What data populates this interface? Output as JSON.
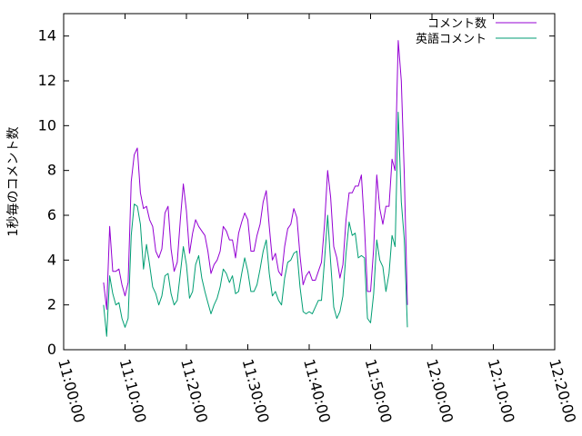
{
  "chart_data": {
    "type": "line",
    "title": "",
    "xlabel": "",
    "ylabel": "1秒毎のコメント数",
    "xlim": [
      "11:00:00",
      "12:20:00"
    ],
    "ylim": [
      0,
      15
    ],
    "x_ticks": [
      "11:00:00",
      "11:10:00",
      "11:20:00",
      "11:30:00",
      "11:40:00",
      "11:50:00",
      "12:00:00",
      "12:10:00",
      "12:20:00"
    ],
    "y_ticks": [
      "0",
      "2",
      "4",
      "6",
      "8",
      "10",
      "12",
      "14"
    ],
    "grid": false,
    "legend_position": "top-right",
    "series": [
      {
        "name": "コメント数",
        "color": "#9400d3",
        "points": [
          [
            "11:06:30",
            3.0
          ],
          [
            "11:07:00",
            1.8
          ],
          [
            "11:07:30",
            5.5
          ],
          [
            "11:08:00",
            3.5
          ],
          [
            "11:08:30",
            3.5
          ],
          [
            "11:09:00",
            3.6
          ],
          [
            "11:09:30",
            2.9
          ],
          [
            "11:10:00",
            2.4
          ],
          [
            "11:10:30",
            3.0
          ],
          [
            "11:11:00",
            7.5
          ],
          [
            "11:11:30",
            8.7
          ],
          [
            "11:12:00",
            9.0
          ],
          [
            "11:12:30",
            7.0
          ],
          [
            "11:13:00",
            6.3
          ],
          [
            "11:13:30",
            6.4
          ],
          [
            "11:14:00",
            5.8
          ],
          [
            "11:14:30",
            5.5
          ],
          [
            "11:15:00",
            4.4
          ],
          [
            "11:15:30",
            4.1
          ],
          [
            "11:16:00",
            4.5
          ],
          [
            "11:16:30",
            6.1
          ],
          [
            "11:17:00",
            6.4
          ],
          [
            "11:17:30",
            4.5
          ],
          [
            "11:18:00",
            3.5
          ],
          [
            "11:18:30",
            3.9
          ],
          [
            "11:19:00",
            5.8
          ],
          [
            "11:19:30",
            7.4
          ],
          [
            "11:20:00",
            6.2
          ],
          [
            "11:20:30",
            4.3
          ],
          [
            "11:21:00",
            5.2
          ],
          [
            "11:21:30",
            5.8
          ],
          [
            "11:22:00",
            5.5
          ],
          [
            "11:22:30",
            5.3
          ],
          [
            "11:23:00",
            5.1
          ],
          [
            "11:23:30",
            4.4
          ],
          [
            "11:24:00",
            3.4
          ],
          [
            "11:24:30",
            3.8
          ],
          [
            "11:25:00",
            4.0
          ],
          [
            "11:25:30",
            4.4
          ],
          [
            "11:26:00",
            5.5
          ],
          [
            "11:26:30",
            5.3
          ],
          [
            "11:27:00",
            4.9
          ],
          [
            "11:27:30",
            4.9
          ],
          [
            "11:28:00",
            4.1
          ],
          [
            "11:28:30",
            5.2
          ],
          [
            "11:29:00",
            5.7
          ],
          [
            "11:29:30",
            6.1
          ],
          [
            "11:30:00",
            5.8
          ],
          [
            "11:30:30",
            4.4
          ],
          [
            "11:31:00",
            4.4
          ],
          [
            "11:31:30",
            5.1
          ],
          [
            "11:32:00",
            5.6
          ],
          [
            "11:32:30",
            6.6
          ],
          [
            "11:33:00",
            7.1
          ],
          [
            "11:33:30",
            5.5
          ],
          [
            "11:34:00",
            4.0
          ],
          [
            "11:34:30",
            4.3
          ],
          [
            "11:35:00",
            3.5
          ],
          [
            "11:35:30",
            3.3
          ],
          [
            "11:36:00",
            4.6
          ],
          [
            "11:36:30",
            5.4
          ],
          [
            "11:37:00",
            5.6
          ],
          [
            "11:37:30",
            6.3
          ],
          [
            "11:38:00",
            5.9
          ],
          [
            "11:38:30",
            4.2
          ],
          [
            "11:39:00",
            2.9
          ],
          [
            "11:39:30",
            3.3
          ],
          [
            "11:40:00",
            3.5
          ],
          [
            "11:40:30",
            3.1
          ],
          [
            "11:41:00",
            3.1
          ],
          [
            "11:41:30",
            3.5
          ],
          [
            "11:42:00",
            3.9
          ],
          [
            "11:42:30",
            5.6
          ],
          [
            "11:43:00",
            8.0
          ],
          [
            "11:43:30",
            6.8
          ],
          [
            "11:44:00",
            4.6
          ],
          [
            "11:44:30",
            4.1
          ],
          [
            "11:45:00",
            3.2
          ],
          [
            "11:45:30",
            3.8
          ],
          [
            "11:46:00",
            5.8
          ],
          [
            "11:46:30",
            7.0
          ],
          [
            "11:47:00",
            7.0
          ],
          [
            "11:47:30",
            7.3
          ],
          [
            "11:48:00",
            7.3
          ],
          [
            "11:48:30",
            7.8
          ],
          [
            "11:49:00",
            5.5
          ],
          [
            "11:49:30",
            2.6
          ],
          [
            "11:50:00",
            2.6
          ],
          [
            "11:50:30",
            4.5
          ],
          [
            "11:51:00",
            7.8
          ],
          [
            "11:51:30",
            6.3
          ],
          [
            "11:52:00",
            5.6
          ],
          [
            "11:52:30",
            6.4
          ],
          [
            "11:53:00",
            6.4
          ],
          [
            "11:53:30",
            8.5
          ],
          [
            "11:54:00",
            8.0
          ],
          [
            "11:54:30",
            13.8
          ],
          [
            "11:55:00",
            12.0
          ],
          [
            "11:55:30",
            7.8
          ],
          [
            "11:56:00",
            2.0
          ]
        ]
      },
      {
        "name": "英語コメント",
        "color": "#009e73",
        "points": [
          [
            "11:06:30",
            2.0
          ],
          [
            "11:07:00",
            0.6
          ],
          [
            "11:07:30",
            3.3
          ],
          [
            "11:08:00",
            2.5
          ],
          [
            "11:08:30",
            2.0
          ],
          [
            "11:09:00",
            2.1
          ],
          [
            "11:09:30",
            1.4
          ],
          [
            "11:10:00",
            1.0
          ],
          [
            "11:10:30",
            1.4
          ],
          [
            "11:11:00",
            5.1
          ],
          [
            "11:11:30",
            6.5
          ],
          [
            "11:12:00",
            6.4
          ],
          [
            "11:12:30",
            5.6
          ],
          [
            "11:13:00",
            3.6
          ],
          [
            "11:13:30",
            4.7
          ],
          [
            "11:14:00",
            3.8
          ],
          [
            "11:14:30",
            2.8
          ],
          [
            "11:15:00",
            2.5
          ],
          [
            "11:15:30",
            2.0
          ],
          [
            "11:16:00",
            2.4
          ],
          [
            "11:16:30",
            3.3
          ],
          [
            "11:17:00",
            3.4
          ],
          [
            "11:17:30",
            2.5
          ],
          [
            "11:18:00",
            2.0
          ],
          [
            "11:18:30",
            2.2
          ],
          [
            "11:19:00",
            3.4
          ],
          [
            "11:19:30",
            4.6
          ],
          [
            "11:20:00",
            3.8
          ],
          [
            "11:20:30",
            2.3
          ],
          [
            "11:21:00",
            2.6
          ],
          [
            "11:21:30",
            3.8
          ],
          [
            "11:22:00",
            4.2
          ],
          [
            "11:22:30",
            3.2
          ],
          [
            "11:23:00",
            2.6
          ],
          [
            "11:23:30",
            2.1
          ],
          [
            "11:24:00",
            1.6
          ],
          [
            "11:24:30",
            2.0
          ],
          [
            "11:25:00",
            2.3
          ],
          [
            "11:25:30",
            2.8
          ],
          [
            "11:26:00",
            3.6
          ],
          [
            "11:26:30",
            3.4
          ],
          [
            "11:27:00",
            3.0
          ],
          [
            "11:27:30",
            3.3
          ],
          [
            "11:28:00",
            2.5
          ],
          [
            "11:28:30",
            2.6
          ],
          [
            "11:29:00",
            3.4
          ],
          [
            "11:29:30",
            4.1
          ],
          [
            "11:30:00",
            3.5
          ],
          [
            "11:30:30",
            2.6
          ],
          [
            "11:31:00",
            2.6
          ],
          [
            "11:31:30",
            2.9
          ],
          [
            "11:32:00",
            3.6
          ],
          [
            "11:32:30",
            4.4
          ],
          [
            "11:33:00",
            4.9
          ],
          [
            "11:33:30",
            3.4
          ],
          [
            "11:34:00",
            2.4
          ],
          [
            "11:34:30",
            2.6
          ],
          [
            "11:35:00",
            2.2
          ],
          [
            "11:35:30",
            2.0
          ],
          [
            "11:36:00",
            3.2
          ],
          [
            "11:36:30",
            3.9
          ],
          [
            "11:37:00",
            4.0
          ],
          [
            "11:37:30",
            4.3
          ],
          [
            "11:38:00",
            4.4
          ],
          [
            "11:38:30",
            2.8
          ],
          [
            "11:39:00",
            1.7
          ],
          [
            "11:39:30",
            1.6
          ],
          [
            "11:40:00",
            1.7
          ],
          [
            "11:40:30",
            1.6
          ],
          [
            "11:41:00",
            1.9
          ],
          [
            "11:41:30",
            2.2
          ],
          [
            "11:42:00",
            2.2
          ],
          [
            "11:42:30",
            4.0
          ],
          [
            "11:43:00",
            6.0
          ],
          [
            "11:43:30",
            3.9
          ],
          [
            "11:44:00",
            1.9
          ],
          [
            "11:44:30",
            1.4
          ],
          [
            "11:45:00",
            1.7
          ],
          [
            "11:45:30",
            2.4
          ],
          [
            "11:46:00",
            4.3
          ],
          [
            "11:46:30",
            5.7
          ],
          [
            "11:47:00",
            5.1
          ],
          [
            "11:47:30",
            5.2
          ],
          [
            "11:48:00",
            4.1
          ],
          [
            "11:48:30",
            4.2
          ],
          [
            "11:49:00",
            4.1
          ],
          [
            "11:49:30",
            1.4
          ],
          [
            "11:50:00",
            1.2
          ],
          [
            "11:50:30",
            2.5
          ],
          [
            "11:51:00",
            4.9
          ],
          [
            "11:51:30",
            4.0
          ],
          [
            "11:52:00",
            3.7
          ],
          [
            "11:52:30",
            2.6
          ],
          [
            "11:53:00",
            3.4
          ],
          [
            "11:53:30",
            5.1
          ],
          [
            "11:54:00",
            4.6
          ],
          [
            "11:54:30",
            10.6
          ],
          [
            "11:55:00",
            6.6
          ],
          [
            "11:55:30",
            4.9
          ],
          [
            "11:56:00",
            1.0
          ]
        ]
      }
    ]
  }
}
